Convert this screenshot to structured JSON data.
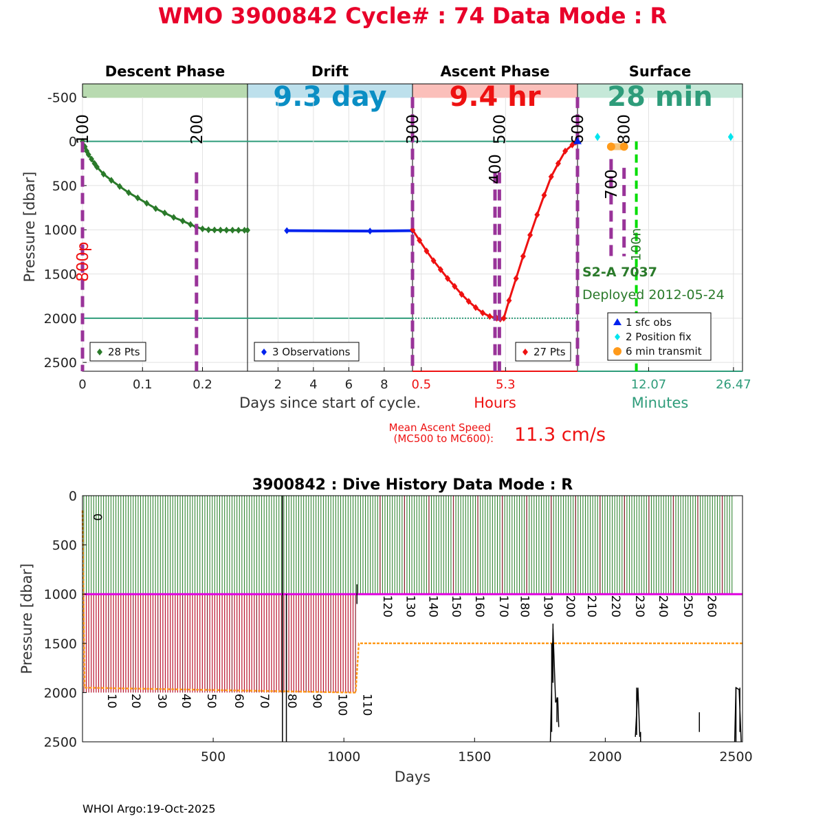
{
  "title": "WMO 3900842   Cycle# : 74   Data Mode : R",
  "colors": {
    "title": "#e8002a",
    "descent": "#2a7a2a",
    "drift": "#0022ee",
    "ascent": "#ee1111",
    "teal": "#2e9c7a",
    "purple": "#993399",
    "cyan": "#00e5ee",
    "orange": "#ff9a1a",
    "green": "#00dd00",
    "magenta": "#e000e0"
  },
  "chart_data": [
    {
      "type": "line",
      "name": "cycle_profile",
      "ylabel": "Pressure [dbar]",
      "ylim": [
        2600,
        -650
      ],
      "y_ticks": [
        "-500",
        "0",
        "500",
        "1000",
        "1500",
        "2000",
        "2500"
      ],
      "y_tick_values": [
        -500,
        0,
        500,
        1000,
        1500,
        2000,
        2500
      ],
      "xlabel_days": "Days since start of cycle.",
      "xlabel_hours": "Hours",
      "xlabel_minutes": "Minutes",
      "phases": [
        {
          "name": "Descent Phase",
          "banner": "",
          "fill": "#b8dab0",
          "banner_color": "#000000"
        },
        {
          "name": "Drift",
          "banner": "9.3 day",
          "fill": "#bde0ec",
          "banner_color": "#0a8ec4"
        },
        {
          "name": "Ascent Phase",
          "banner": "9.4 hr",
          "fill": "#fbbfba",
          "banner_color": "#ee1111"
        },
        {
          "name": "Surface",
          "banner": "28 min",
          "fill": "#c5e8d8",
          "banner_color": "#2e9c7a"
        }
      ],
      "descent": {
        "xlim": [
          0,
          0.275
        ],
        "x_ticks": [
          "0",
          "0.1",
          "0.2"
        ],
        "x_tick_values": [
          0,
          0.1,
          0.2
        ],
        "x": [
          0,
          0.007,
          0.015,
          0.024,
          0.035,
          0.048,
          0.062,
          0.077,
          0.092,
          0.107,
          0.122,
          0.137,
          0.152,
          0.167,
          0.18,
          0.19,
          0.2,
          0.21,
          0.22,
          0.23,
          0.24,
          0.25,
          0.26,
          0.27,
          0.275,
          0.004,
          0.01,
          0.02
        ],
        "y": [
          0,
          110,
          200,
          290,
          370,
          440,
          510,
          580,
          640,
          700,
          760,
          810,
          860,
          900,
          940,
          970,
          990,
          1000,
          1002,
          1003,
          1004,
          1004,
          1005,
          1005,
          1005,
          60,
          150,
          250
        ],
        "legend": "28 Pts",
        "markers": [
          {
            "label": "100",
            "x": 0
          },
          {
            "label": "200",
            "x": 0.19
          }
        ]
      },
      "drift": {
        "xlim": [
          0.275,
          9.6
        ],
        "x_ticks": [
          "2",
          "4",
          "6",
          "8"
        ],
        "x_tick_values": [
          2,
          4,
          6,
          8
        ],
        "x": [
          2.5,
          7.2,
          9.6
        ],
        "y": [
          1010,
          1015,
          1010
        ],
        "legend": "3 Observations"
      },
      "ascent": {
        "xlim": [
          0,
          9.4
        ],
        "x_ticks": [
          "0.5",
          "5.3"
        ],
        "x_tick_values": [
          0.5,
          5.3
        ],
        "x": [
          0,
          0.4,
          0.8,
          1.2,
          1.6,
          2.0,
          2.4,
          2.8,
          3.2,
          3.6,
          4.0,
          4.4,
          4.8,
          5.0,
          5.2,
          5.5,
          5.9,
          6.3,
          6.7,
          7.1,
          7.5,
          7.9,
          8.3,
          8.7,
          9.1,
          9.3,
          9.4
        ],
        "y": [
          1000,
          1120,
          1240,
          1350,
          1450,
          1550,
          1640,
          1730,
          1810,
          1880,
          1940,
          1980,
          2000,
          2010,
          2000,
          1800,
          1550,
          1300,
          1060,
          830,
          610,
          400,
          250,
          110,
          40,
          10,
          0
        ],
        "legend": "27 Pts",
        "markers": [
          {
            "label": "300",
            "x": 0
          },
          {
            "label": "400",
            "x": 4.7
          },
          {
            "label": "500",
            "x": 4.95
          },
          {
            "label": "600",
            "x": 9.4
          }
        ]
      },
      "surface": {
        "xlim": [
          0,
          28
        ],
        "x_ticks": [
          "12.07",
          "26.47"
        ],
        "x_tick_values": [
          12.07,
          26.47
        ],
        "sfc_obs": [
          {
            "x": 0,
            "y": 0
          }
        ],
        "position_fix": [
          {
            "x": 3.4,
            "y": -50
          },
          {
            "x": 26.0,
            "y": -50
          }
        ],
        "transmit": [
          {
            "x": 5.7,
            "y": 60
          },
          {
            "x": 7.9,
            "y": 60
          }
        ],
        "markers": [
          {
            "label": "700",
            "x": 5.7
          },
          {
            "label": "800",
            "x": 7.9
          },
          {
            "label": "100n",
            "x": 9.4
          }
        ],
        "legend": [
          "1 sfc obs",
          "2 Position fix",
          "6 min transmit"
        ]
      },
      "left_label": "800p",
      "float_id": "S2-A 7037",
      "deployed": "Deployed 2012-05-24",
      "mean_speed_label": "Mean Ascent Speed",
      "mean_speed_sub": "(MC500 to MC600):",
      "mean_speed_value": "11.3 cm/s"
    },
    {
      "type": "line",
      "name": "dive_history",
      "title": "3900842 : Dive History      Data Mode : R",
      "xlabel": "Days",
      "ylabel": "Pressure [dbar]",
      "xlim": [
        0,
        2525
      ],
      "ylim": [
        2500,
        0
      ],
      "x_ticks": [
        "500",
        "1000",
        "1500",
        "2000",
        "2500"
      ],
      "x_tick_values": [
        500,
        1000,
        1500,
        2000,
        2500
      ],
      "y_ticks": [
        "0",
        "500",
        "1000",
        "1500",
        "2000",
        "2500"
      ],
      "y_tick_values": [
        0,
        500,
        1000,
        1500,
        2000,
        2500
      ],
      "cycle_labels": [
        "0",
        "10",
        "20",
        "30",
        "40",
        "50",
        "60",
        "70",
        "80",
        "90",
        "100",
        "110",
        "120",
        "130",
        "140",
        "150",
        "160",
        "170",
        "180",
        "190",
        "200",
        "210",
        "220",
        "230",
        "240",
        "250",
        "260"
      ],
      "cycle_label_x": [
        5,
        60,
        152,
        253,
        345,
        442,
        547,
        645,
        750,
        846,
        943,
        1038,
        1115,
        1203,
        1290,
        1378,
        1467,
        1560,
        1640,
        1730,
        1815,
        1897,
        1988,
        2080,
        2170,
        2265,
        2355
      ],
      "park_depth": 1000,
      "profile_depth_early": 2000,
      "profile_depth_late": 1000,
      "switch_day": 1045,
      "orange_depth_late": 1500
    }
  ],
  "footer": "WHOI Argo:19-Oct-2025"
}
